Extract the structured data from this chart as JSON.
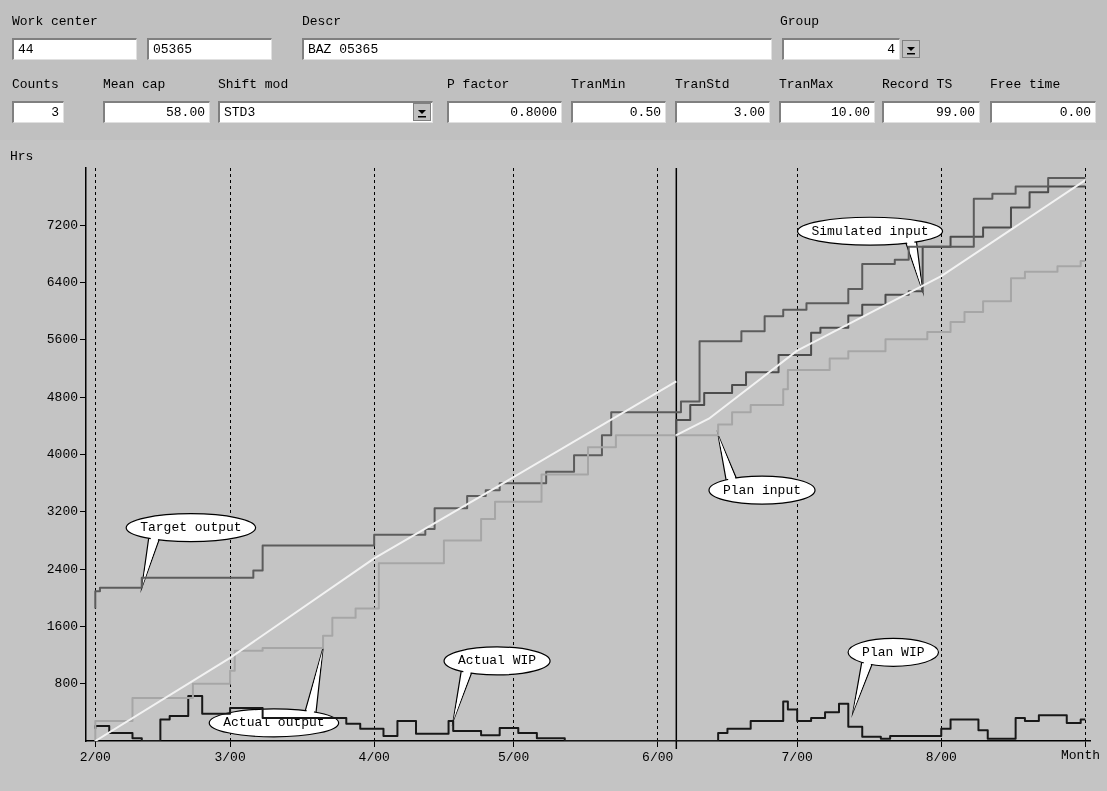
{
  "chart_data": [
    {
      "type": "other",
      "annotations": [
        "Work center",
        "44",
        "05365",
        "Descr",
        "BAZ 05365",
        "Group",
        "4",
        "Counts",
        "3",
        "Mean cap",
        "58.00",
        "Shift mod",
        "STD3",
        "P factor",
        "0.8000",
        "TranMin",
        "0.50",
        "TranStd",
        "3.00",
        "TranMax",
        "10.00",
        "Record TS",
        "99.00",
        "Free time",
        "0.00"
      ]
    },
    {
      "type": "step",
      "ylabel": "Hrs",
      "xlabel": "Month",
      "xlim": [
        "2000-01-30",
        "2000-09-02"
      ],
      "ylim": [
        0,
        8000
      ],
      "xticks": [
        {
          "value": "2000-02-01",
          "label": "2/00"
        },
        {
          "value": "2000-03-01",
          "label": "3/00"
        },
        {
          "value": "2000-04-01",
          "label": "4/00"
        },
        {
          "value": "2000-05-01",
          "label": "5/00"
        },
        {
          "value": "2000-06-01",
          "label": "6/00"
        },
        {
          "value": "2000-07-01",
          "label": "7/00"
        },
        {
          "value": "2000-08-01",
          "label": "8/00"
        },
        {
          "value": "2000-09-01",
          "label": null
        }
      ],
      "yticks": [
        800,
        1600,
        2400,
        3200,
        4000,
        4800,
        5600,
        6400,
        7200
      ],
      "grid": "x",
      "ref_lines": [
        {
          "axis": "x",
          "value": "2000-06-05",
          "color": "#000000",
          "line_style": "solid"
        }
      ],
      "series": [
        {
          "type": "line",
          "color": "#f2f2f2",
          "x": [
            "2000-02-01",
            "2000-03-01",
            "2000-04-01",
            "2000-04-28",
            "2000-06-05"
          ],
          "values": [
            0,
            1160,
            2550,
            3570,
            5020
          ]
        },
        {
          "type": "line",
          "color": "#f2f2f2",
          "x": [
            "2000-06-05",
            "2000-06-12",
            "2000-07-01",
            "2000-08-01",
            "2000-09-01"
          ],
          "values": [
            4270,
            4500,
            5450,
            6490,
            7830
          ]
        },
        {
          "type": "step",
          "color": "#a6a6a6",
          "x": [
            "2000-02-01",
            "2000-02-09",
            "2000-02-22",
            "2000-03-01",
            "2000-03-02",
            "2000-03-08",
            "2000-03-21",
            "2000-03-23",
            "2000-03-28",
            "2000-04-02",
            "2000-04-16",
            "2000-04-24",
            "2000-04-27",
            "2000-05-07",
            "2000-05-17",
            "2000-05-23",
            "2000-05-30",
            "2000-06-14",
            "2000-06-17",
            "2000-06-21",
            "2000-06-28",
            "2000-06-29",
            "2000-07-08",
            "2000-07-12",
            "2000-07-20",
            "2000-07-29",
            "2000-08-03",
            "2000-08-06",
            "2000-08-10",
            "2000-08-16",
            "2000-08-19",
            "2000-08-26",
            "2000-08-31",
            "2000-09-01"
          ],
          "values": [
            0,
            280,
            600,
            800,
            980,
            1260,
            1300,
            1470,
            1720,
            1850,
            2480,
            2800,
            3100,
            3340,
            3720,
            4100,
            4270,
            4270,
            4420,
            4590,
            4690,
            4910,
            5180,
            5340,
            5440,
            5610,
            5710,
            5850,
            5990,
            6140,
            6460,
            6550,
            6630,
            6700
          ]
        },
        {
          "type": "step",
          "color": "#5c5c5c",
          "x": [
            "2000-02-01",
            "2000-02-02",
            "2000-02-11",
            "2000-03-06",
            "2000-03-08",
            "2000-04-01",
            "2000-04-12",
            "2000-04-14",
            "2000-04-21",
            "2000-04-25",
            "2000-04-28",
            "2000-05-08",
            "2000-05-14",
            "2000-05-20",
            "2000-05-22",
            "2000-06-06",
            "2000-06-10",
            "2000-06-19",
            "2000-06-24",
            "2000-06-28",
            "2000-07-03",
            "2000-07-12",
            "2000-07-15",
            "2000-07-22",
            "2000-07-25",
            "2000-08-08",
            "2000-08-12",
            "2000-08-17",
            "2000-08-24",
            "2000-08-29",
            "2000-09-01"
          ],
          "values": [
            1850,
            2090,
            2140,
            2280,
            2380,
            2730,
            2880,
            2960,
            3250,
            3420,
            3500,
            3600,
            3760,
            3990,
            4270,
            4590,
            4740,
            5580,
            5720,
            5930,
            6020,
            6110,
            6310,
            6660,
            6720,
            6900,
            7570,
            7640,
            7740,
            7860,
            7860
          ]
        },
        {
          "type": "step",
          "color": "#4c4c4c",
          "x": [
            "2000-06-05",
            "2000-06-08",
            "2000-06-11",
            "2000-06-17",
            "2000-06-20",
            "2000-06-27",
            "2000-07-04",
            "2000-07-06",
            "2000-07-12",
            "2000-07-15",
            "2000-07-20",
            "2000-07-25",
            "2000-07-28",
            "2000-08-03",
            "2000-08-10",
            "2000-08-16",
            "2000-08-20",
            "2000-08-24",
            "2000-08-28",
            "2000-09-01"
          ],
          "values": [
            4240,
            4480,
            4690,
            4860,
            4970,
            5150,
            5390,
            5700,
            5770,
            5940,
            6090,
            6230,
            6280,
            6900,
            7040,
            7170,
            7450,
            7660,
            7740,
            7740
          ]
        },
        {
          "type": "step",
          "color": "#181818",
          "x": [
            "2000-02-01",
            "2000-02-04",
            "2000-02-09",
            "2000-02-11",
            "2000-02-15",
            "2000-02-17",
            "2000-02-21",
            "2000-02-24",
            "2000-03-01",
            "2000-03-08",
            "2000-03-26",
            "2000-03-29",
            "2000-04-03",
            "2000-04-06",
            "2000-04-10",
            "2000-04-17",
            "2000-04-18",
            "2000-04-24",
            "2000-04-28",
            "2000-05-02",
            "2000-05-06",
            "2000-05-12",
            "2000-05-22",
            "2000-06-05",
            "2000-06-14",
            "2000-06-16",
            "2000-06-21",
            "2000-06-28",
            "2000-06-29",
            "2000-07-01",
            "2000-07-04",
            "2000-07-07",
            "2000-07-10",
            "2000-07-12",
            "2000-07-15",
            "2000-07-19",
            "2000-07-21",
            "2000-08-01",
            "2000-08-03",
            "2000-08-09",
            "2000-08-11",
            "2000-08-17",
            "2000-08-19",
            "2000-08-22",
            "2000-08-28",
            "2000-08-31",
            "2000-09-01"
          ],
          "values": [
            170,
            210,
            110,
            40,
            0,
            300,
            350,
            630,
            380,
            460,
            320,
            240,
            170,
            70,
            280,
            100,
            280,
            140,
            80,
            180,
            110,
            40,
            0,
            0,
            0,
            110,
            170,
            280,
            550,
            440,
            280,
            320,
            400,
            520,
            200,
            60,
            30,
            70,
            170,
            300,
            150,
            30,
            320,
            280,
            360,
            250,
            300
          ]
        }
      ],
      "annotations": [
        {
          "text": "Target output",
          "x": "2000-02-11",
          "y": 2140
        },
        {
          "text": "Actual output",
          "x": "2000-03-21",
          "y": 1300
        },
        {
          "text": "Actual WIP",
          "x": "2000-04-18",
          "y": 280
        },
        {
          "text": "Plan input",
          "x": "2000-06-14",
          "y": 4270
        },
        {
          "text": "Simulated input",
          "x": "2000-07-28",
          "y": 6280
        },
        {
          "text": "Plan WIP",
          "x": "2000-07-13",
          "y": 400
        }
      ]
    }
  ]
}
